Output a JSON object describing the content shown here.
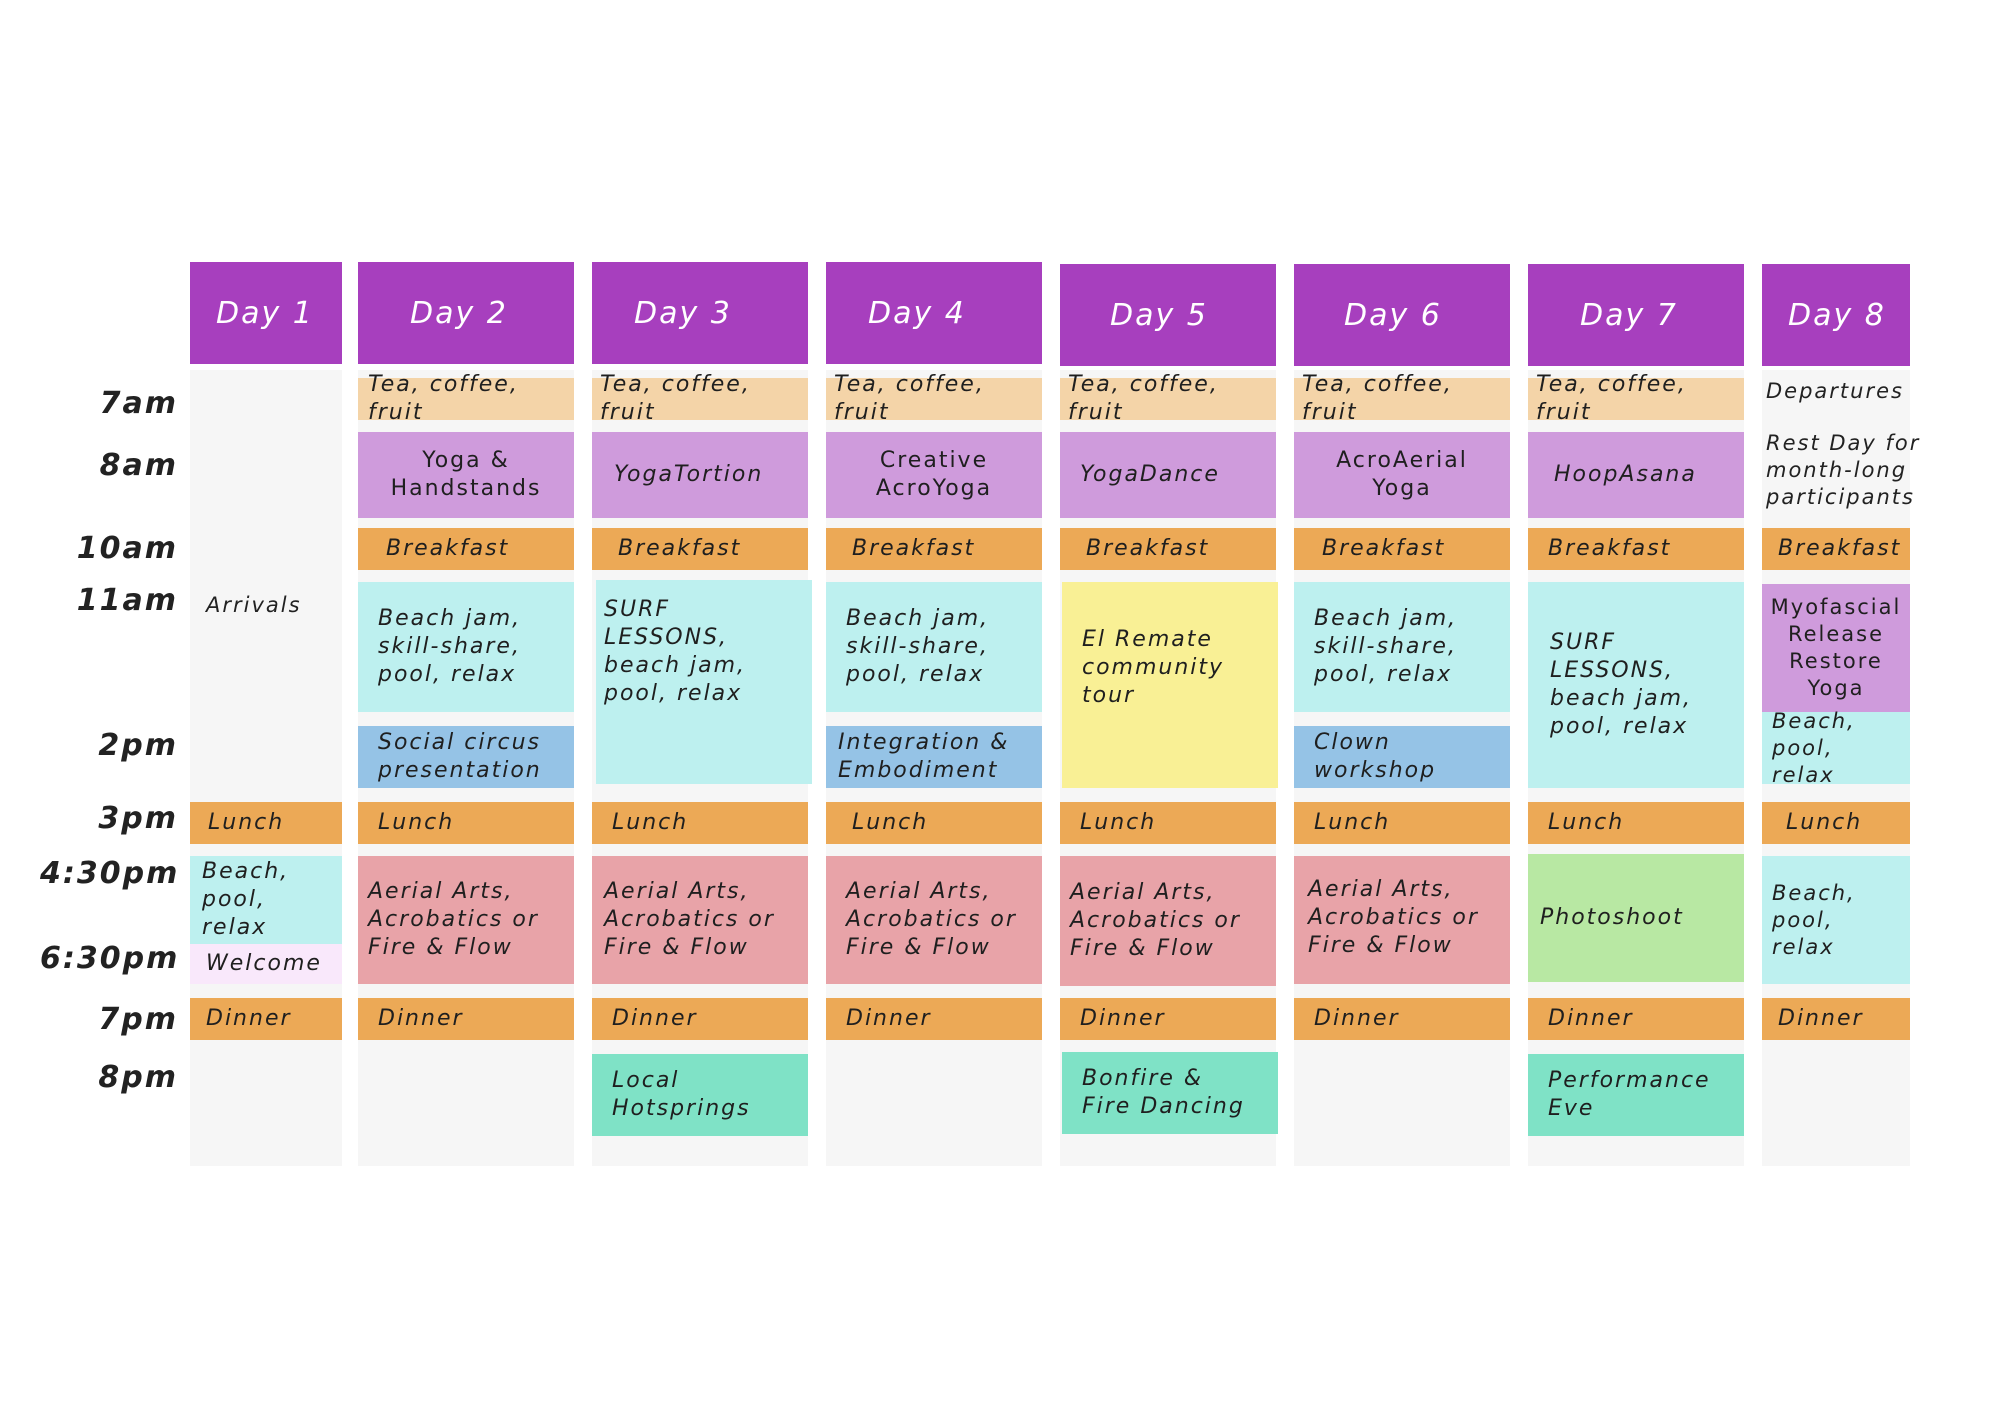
{
  "colors": {
    "header": "#a73fbe",
    "tea": "#f4d4a8",
    "yoga": "#cf9bdc",
    "meal": "#eca956",
    "free_time": "#bdf0ef",
    "talk": "#95c3e6",
    "tour": "#f9f095",
    "aerial": "#e8a3a8",
    "photoshoot": "#b8e8a3",
    "evening": "#7fe2c6",
    "welcome": "#f9e8fb"
  },
  "times": [
    "7am",
    "8am",
    "10am",
    "11am",
    "2pm",
    "3pm",
    "4:30pm",
    "6:30pm",
    "7pm",
    "8pm"
  ],
  "days": [
    {
      "label": "Day 1",
      "arrivals": "Arrivals",
      "lunch": "Lunch",
      "afternoon": "Beach,\npool, relax",
      "welcome": "Welcome",
      "dinner": "Dinner"
    },
    {
      "label": "Day 2",
      "tea": "Tea, coffee, fruit",
      "yoga": "Yoga &\nHandstands",
      "breakfast": "Breakfast",
      "midday": "Beach jam,\nskill-share,\npool, relax",
      "talk": "Social circus\npresentation",
      "lunch": "Lunch",
      "afternoon": "Aerial Arts,\nAcrobatics or\nFire & Flow",
      "dinner": "Dinner"
    },
    {
      "label": "Day 3",
      "tea": "Tea, coffee, fruit",
      "yoga": "YogaTortion",
      "breakfast": "Breakfast",
      "midday": "SURF\nLESSONS,\nbeach jam,\npool, relax",
      "lunch": "Lunch",
      "afternoon": "Aerial Arts,\nAcrobatics or\nFire & Flow",
      "dinner": "Dinner",
      "evening": "Local\nHotsprings"
    },
    {
      "label": "Day 4",
      "tea": "Tea, coffee, fruit",
      "yoga": "Creative\nAcroYoga",
      "breakfast": "Breakfast",
      "midday": "Beach jam,\nskill-share,\npool, relax",
      "talk": "Integration &\nEmbodiment",
      "lunch": "Lunch",
      "afternoon": "Aerial Arts,\nAcrobatics or\nFire & Flow",
      "dinner": "Dinner"
    },
    {
      "label": "Day 5",
      "tea": "Tea, coffee, fruit",
      "yoga": "YogaDance",
      "breakfast": "Breakfast",
      "midday": "El Remate\ncommunity\ntour",
      "lunch": "Lunch",
      "afternoon": "Aerial Arts,\nAcrobatics or\nFire & Flow",
      "dinner": "Dinner",
      "evening": "Bonfire &\nFire Dancing"
    },
    {
      "label": "Day 6",
      "tea": "Tea, coffee, fruit",
      "yoga": "AcroAerial\nYoga",
      "breakfast": "Breakfast",
      "midday": "Beach jam,\nskill-share,\npool, relax",
      "talk": "Clown\nworkshop",
      "lunch": "Lunch",
      "afternoon": "Aerial Arts,\nAcrobatics or\nFire & Flow",
      "dinner": "Dinner"
    },
    {
      "label": "Day 7",
      "tea": "Tea, coffee, fruit",
      "yoga": "HoopAsana",
      "breakfast": "Breakfast",
      "midday": "SURF\nLESSONS,\nbeach jam,\npool, relax",
      "lunch": "Lunch",
      "afternoon": "Photoshoot",
      "dinner": "Dinner",
      "evening": "Performance\nEve"
    },
    {
      "label": "Day 8",
      "departures": "Departures",
      "rest": "Rest Day for\nmonth-long\nparticipants",
      "breakfast": "Breakfast",
      "yoga": "Myofascial\nRelease\nRestore\nYoga",
      "midday": "Beach,\npool, relax",
      "lunch": "Lunch",
      "afternoon": "Beach,\npool, relax",
      "dinner": "Dinner"
    }
  ]
}
